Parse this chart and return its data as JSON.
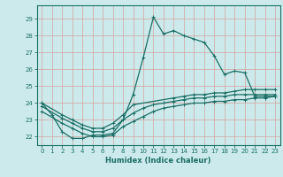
{
  "xlabel": "Humidex (Indice chaleur)",
  "xlim": [
    -0.5,
    23.5
  ],
  "ylim": [
    21.5,
    29.8
  ],
  "xticks": [
    0,
    1,
    2,
    3,
    4,
    5,
    6,
    7,
    8,
    9,
    10,
    11,
    12,
    13,
    14,
    15,
    16,
    17,
    18,
    19,
    20,
    21,
    22,
    23
  ],
  "yticks": [
    22,
    23,
    24,
    25,
    26,
    27,
    28,
    29
  ],
  "bg_color": "#cceaeb",
  "line_color": "#1a6e65",
  "grid_color": "#b8d8d8",
  "line1_x": [
    0,
    1,
    2,
    3,
    4,
    5,
    6,
    7,
    8,
    9,
    10,
    11,
    12,
    13,
    14,
    15,
    16,
    17,
    18,
    19,
    20,
    21,
    22,
    23
  ],
  "line1_y": [
    24.0,
    23.3,
    22.3,
    21.9,
    21.9,
    22.1,
    22.1,
    22.2,
    23.0,
    24.5,
    26.7,
    29.1,
    28.1,
    28.3,
    28.0,
    27.8,
    27.6,
    26.8,
    25.7,
    25.9,
    25.8,
    24.4,
    24.4,
    24.4
  ],
  "line2_x": [
    0,
    2,
    3,
    4,
    5,
    6,
    7,
    8,
    9,
    13,
    14,
    15,
    16,
    17,
    18,
    19,
    20,
    21,
    22,
    23
  ],
  "line2_y": [
    24.0,
    23.3,
    23.0,
    22.7,
    22.5,
    22.5,
    22.8,
    23.3,
    23.9,
    24.3,
    24.4,
    24.5,
    24.5,
    24.6,
    24.6,
    24.7,
    24.8,
    24.8,
    24.8,
    24.8
  ],
  "line3_x": [
    0,
    2,
    3,
    4,
    5,
    6,
    7,
    8,
    9,
    10,
    11,
    12,
    13,
    14,
    15,
    16,
    17,
    18,
    19,
    20,
    21,
    22,
    23
  ],
  "line3_y": [
    23.8,
    23.1,
    22.8,
    22.5,
    22.3,
    22.3,
    22.5,
    23.0,
    23.4,
    23.7,
    23.9,
    24.0,
    24.1,
    24.2,
    24.3,
    24.3,
    24.4,
    24.4,
    24.5,
    24.5,
    24.5,
    24.5,
    24.5
  ],
  "line4_x": [
    0,
    2,
    3,
    4,
    5,
    6,
    7,
    8,
    9,
    10,
    11,
    12,
    13,
    14,
    15,
    16,
    17,
    18,
    19,
    20,
    21,
    22,
    23
  ],
  "line4_y": [
    23.5,
    22.8,
    22.5,
    22.2,
    22.0,
    22.0,
    22.1,
    22.6,
    22.9,
    23.2,
    23.5,
    23.7,
    23.8,
    23.9,
    24.0,
    24.0,
    24.1,
    24.1,
    24.2,
    24.2,
    24.3,
    24.3,
    24.4
  ]
}
